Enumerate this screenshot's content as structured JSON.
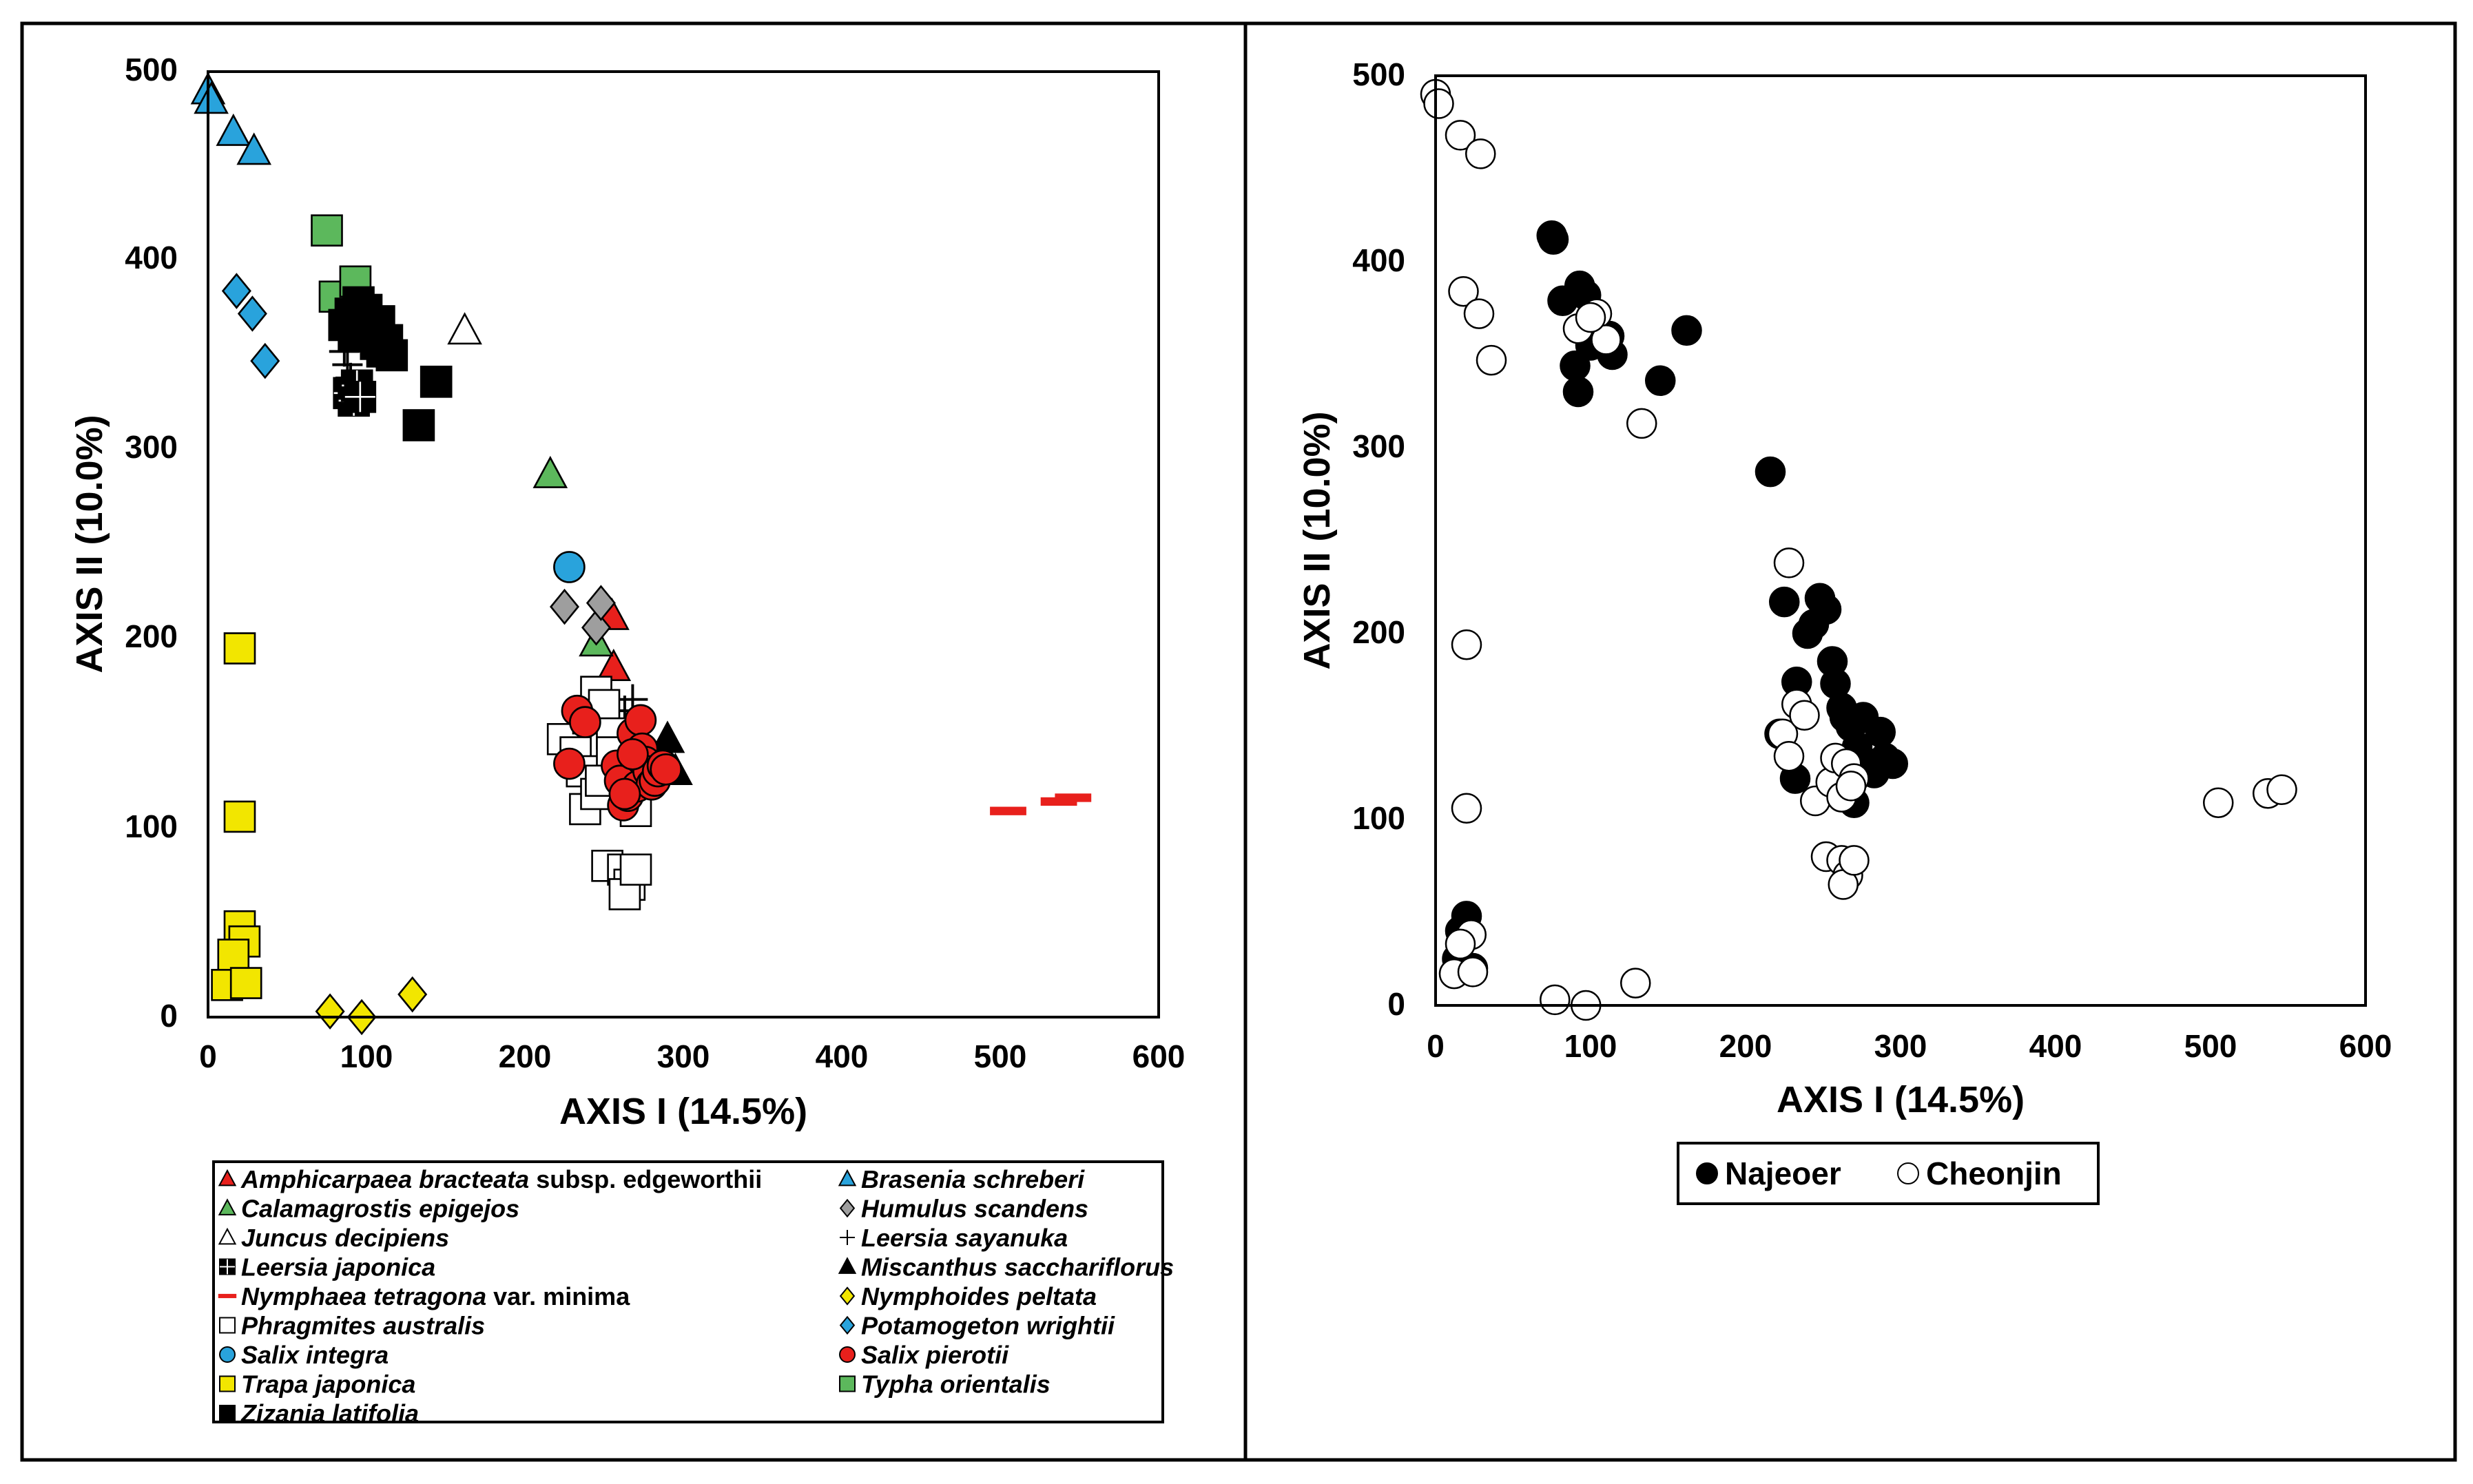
{
  "chart_data": [
    {
      "type": "scatter",
      "title": "",
      "xlabel": "AXIS I (14.5%)",
      "ylabel": "AXIS II (10.0%)",
      "xlim": [
        0,
        600
      ],
      "ylim": [
        0,
        500
      ],
      "xticks": [
        0,
        100,
        200,
        300,
        400,
        500,
        600
      ],
      "yticks": [
        0,
        100,
        200,
        300,
        400,
        500
      ],
      "grid": false,
      "legend_position": "bottom",
      "series": [
        {
          "name": "Amphicarpaea bracteata",
          "suffix": " subsp. edgeworthii",
          "marker": "triangle",
          "fill": "#e8201c",
          "points": [
            [
              255,
              212
            ],
            [
              256,
              185
            ]
          ]
        },
        {
          "name": "Brasenia schreberi",
          "marker": "triangle",
          "fill": "#29a3dc",
          "points": [
            [
              0,
              490
            ],
            [
              2,
              485
            ],
            [
              16,
              468
            ],
            [
              29,
              458
            ]
          ]
        },
        {
          "name": "Calamagrostis epigejos",
          "marker": "triangle",
          "fill": "#5cb85c",
          "points": [
            [
              216,
              287
            ],
            [
              245,
              198
            ]
          ]
        },
        {
          "name": "Humulus scandens",
          "marker": "diamond",
          "fill": "#9e9e9e",
          "points": [
            [
              225,
              217
            ],
            [
              245,
              206
            ],
            [
              248,
              219
            ]
          ]
        },
        {
          "name": "Juncus decipiens",
          "marker": "triangle",
          "fill": "#ffffff",
          "points": [
            [
              162,
              363
            ]
          ]
        },
        {
          "name": "Leersia sayanuka",
          "marker": "plus",
          "fill": "#000000",
          "points": [
            [
              86,
              352
            ],
            [
              88,
              345
            ],
            [
              90,
              338
            ],
            [
              263,
              162
            ],
            [
              268,
              168
            ]
          ]
        },
        {
          "name": "Leersia japonica",
          "marker": "gridsquare",
          "fill": "#000000",
          "points": [
            [
              89,
              330
            ],
            [
              92,
              326
            ],
            [
              94,
              334
            ],
            [
              96,
              328
            ]
          ]
        },
        {
          "name": "Miscanthus sacchariflorus",
          "marker": "triangle",
          "fill": "#000000",
          "points": [
            [
              290,
              147
            ],
            [
              295,
              130
            ]
          ]
        },
        {
          "name": "Nymphaea tetragona",
          "suffix": " var. minima",
          "marker": "dash",
          "fill": "#e8201c",
          "points": [
            [
              505,
              109
            ],
            [
              537,
              114
            ],
            [
              546,
              116
            ]
          ]
        },
        {
          "name": "Nymphoides peltata",
          "marker": "diamond",
          "fill": "#f2e600",
          "points": [
            [
              77,
              3
            ],
            [
              97,
              0
            ],
            [
              129,
              12
            ]
          ]
        },
        {
          "name": "Phragmites australis",
          "marker": "square",
          "fill": "#ffffff",
          "points": [
            [
              224,
              147
            ],
            [
              232,
              140
            ],
            [
              236,
              130
            ],
            [
              240,
              158
            ],
            [
              245,
              172
            ],
            [
              250,
              165
            ],
            [
              255,
              150
            ],
            [
              238,
              110
            ],
            [
              245,
              118
            ],
            [
              270,
              109
            ],
            [
              252,
              80
            ],
            [
              262,
              78
            ],
            [
              266,
              70
            ],
            [
              263,
              65
            ],
            [
              270,
              78
            ],
            [
              255,
              140
            ],
            [
              248,
              125
            ]
          ]
        },
        {
          "name": "Potamogeton wrightii",
          "marker": "diamond",
          "fill": "#29a3dc",
          "points": [
            [
              18,
              384
            ],
            [
              28,
              372
            ],
            [
              36,
              347
            ]
          ]
        },
        {
          "name": "Salix integra",
          "marker": "circle",
          "fill": "#29a3dc",
          "points": [
            [
              228,
              238
            ]
          ]
        },
        {
          "name": "Salix pierotii",
          "marker": "circle",
          "fill": "#e8201c",
          "points": [
            [
              228,
              134
            ],
            [
              233,
              162
            ],
            [
              238,
              156
            ],
            [
              258,
              133
            ],
            [
              260,
              125
            ],
            [
              262,
              112
            ],
            [
              265,
              117
            ],
            [
              268,
              150
            ],
            [
              271,
              122
            ],
            [
              273,
              157
            ],
            [
              274,
              142
            ],
            [
              276,
              135
            ],
            [
              278,
              130
            ],
            [
              280,
              123
            ],
            [
              282,
              125
            ],
            [
              284,
              130
            ],
            [
              287,
              133
            ],
            [
              289,
              131
            ],
            [
              263,
              118
            ],
            [
              268,
              139
            ]
          ]
        },
        {
          "name": "Trapa japonica",
          "marker": "square",
          "fill": "#f2e600",
          "points": [
            [
              20,
              195
            ],
            [
              20,
              106
            ],
            [
              20,
              48
            ],
            [
              23,
              40
            ],
            [
              16,
              33
            ],
            [
              12,
              17
            ],
            [
              24,
              18
            ]
          ]
        },
        {
          "name": "Typha orientalis",
          "marker": "square",
          "fill": "#5cb85c",
          "points": [
            [
              75,
              416
            ],
            [
              80,
              381
            ],
            [
              93,
              389
            ]
          ]
        },
        {
          "name": "Zizania latifolia",
          "marker": "square",
          "fill": "#000000",
          "points": [
            [
              86,
              366
            ],
            [
              90,
              372
            ],
            [
              92,
              360
            ],
            [
              95,
              378
            ],
            [
              98,
              370
            ],
            [
              100,
              374
            ],
            [
              102,
              365
            ],
            [
              104,
              360
            ],
            [
              106,
              356
            ],
            [
              108,
              368
            ],
            [
              110,
              352
            ],
            [
              113,
              358
            ],
            [
              116,
              350
            ],
            [
              144,
              336
            ],
            [
              133,
              313
            ]
          ]
        }
      ],
      "legend_entries": [
        {
          "series": 0,
          "col": 0,
          "row": 0
        },
        {
          "series": 1,
          "col": 1,
          "row": 0
        },
        {
          "series": 2,
          "col": 0,
          "row": 1
        },
        {
          "series": 3,
          "col": 1,
          "row": 1
        },
        {
          "series": 4,
          "col": 0,
          "row": 2
        },
        {
          "series": 5,
          "col": 1,
          "row": 2
        },
        {
          "series": 6,
          "col": 0,
          "row": 3
        },
        {
          "series": 7,
          "col": 1,
          "row": 3
        },
        {
          "series": 8,
          "col": 0,
          "row": 4
        },
        {
          "series": 9,
          "col": 1,
          "row": 4
        },
        {
          "series": 10,
          "col": 0,
          "row": 5
        },
        {
          "series": 11,
          "col": 1,
          "row": 5
        },
        {
          "series": 12,
          "col": 0,
          "row": 6
        },
        {
          "series": 13,
          "col": 1,
          "row": 6
        },
        {
          "series": 14,
          "col": 0,
          "row": 7
        },
        {
          "series": 15,
          "col": 1,
          "row": 7
        },
        {
          "series": 16,
          "col": 0,
          "row": 8
        }
      ]
    },
    {
      "type": "scatter",
      "title": "",
      "xlabel": "AXIS I (14.5%)",
      "ylabel": "AXIS II (10.0%)",
      "xlim": [
        0,
        600
      ],
      "ylim": [
        0,
        500
      ],
      "xticks": [
        0,
        100,
        200,
        300,
        400,
        500,
        600
      ],
      "yticks": [
        0,
        100,
        200,
        300,
        400,
        500
      ],
      "grid": false,
      "legend_position": "bottom",
      "series": [
        {
          "name": "Najeoer",
          "marker": "circle",
          "fill": "#000000",
          "points": [
            [
              75,
              414
            ],
            [
              76,
              412
            ],
            [
              82,
              379
            ],
            [
              93,
              387
            ],
            [
              97,
              382
            ],
            [
              90,
              344
            ],
            [
              92,
              330
            ],
            [
              100,
              355
            ],
            [
              112,
              360
            ],
            [
              114,
              350
            ],
            [
              145,
              336
            ],
            [
              162,
              363
            ],
            [
              216,
              287
            ],
            [
              225,
              217
            ],
            [
              233,
              174
            ],
            [
              240,
              200
            ],
            [
              244,
              205
            ],
            [
              248,
              219
            ],
            [
              252,
              213
            ],
            [
              256,
              185
            ],
            [
              258,
              173
            ],
            [
              262,
              160
            ],
            [
              264,
              155
            ],
            [
              268,
              150
            ],
            [
              272,
              139
            ],
            [
              276,
              155
            ],
            [
              280,
              130
            ],
            [
              283,
              125
            ],
            [
              287,
              147
            ],
            [
              290,
              133
            ],
            [
              295,
              130
            ],
            [
              263,
              118
            ],
            [
              270,
              109
            ],
            [
              232,
              122
            ],
            [
              222,
              146
            ],
            [
              20,
              48
            ],
            [
              16,
              40
            ],
            [
              14,
              25
            ],
            [
              24,
              20
            ]
          ]
        },
        {
          "name": "Cheonjin",
          "marker": "circle",
          "fill": "#ffffff",
          "points": [
            [
              0,
              490
            ],
            [
              2,
              485
            ],
            [
              16,
              468
            ],
            [
              29,
              458
            ],
            [
              18,
              384
            ],
            [
              28,
              372
            ],
            [
              36,
              347
            ],
            [
              20,
              194
            ],
            [
              20,
              106
            ],
            [
              23,
              38
            ],
            [
              16,
              33
            ],
            [
              12,
              17
            ],
            [
              24,
              18
            ],
            [
              77,
              3
            ],
            [
              97,
              0
            ],
            [
              129,
              12
            ],
            [
              133,
              313
            ],
            [
              92,
              364
            ],
            [
              104,
              372
            ],
            [
              110,
              358
            ],
            [
              100,
              370
            ],
            [
              228,
              238
            ],
            [
              224,
              146
            ],
            [
              228,
              134
            ],
            [
              233,
              162
            ],
            [
              238,
              156
            ],
            [
              245,
              110
            ],
            [
              255,
              120
            ],
            [
              258,
              133
            ],
            [
              262,
              112
            ],
            [
              265,
              130
            ],
            [
              270,
              122
            ],
            [
              268,
              118
            ],
            [
              252,
              80
            ],
            [
              262,
              78
            ],
            [
              266,
              70
            ],
            [
              263,
              65
            ],
            [
              270,
              78
            ],
            [
              505,
              109
            ],
            [
              537,
              114
            ],
            [
              546,
              116
            ]
          ]
        }
      ],
      "legend_entries": [
        {
          "series": 0
        },
        {
          "series": 1
        }
      ]
    }
  ]
}
